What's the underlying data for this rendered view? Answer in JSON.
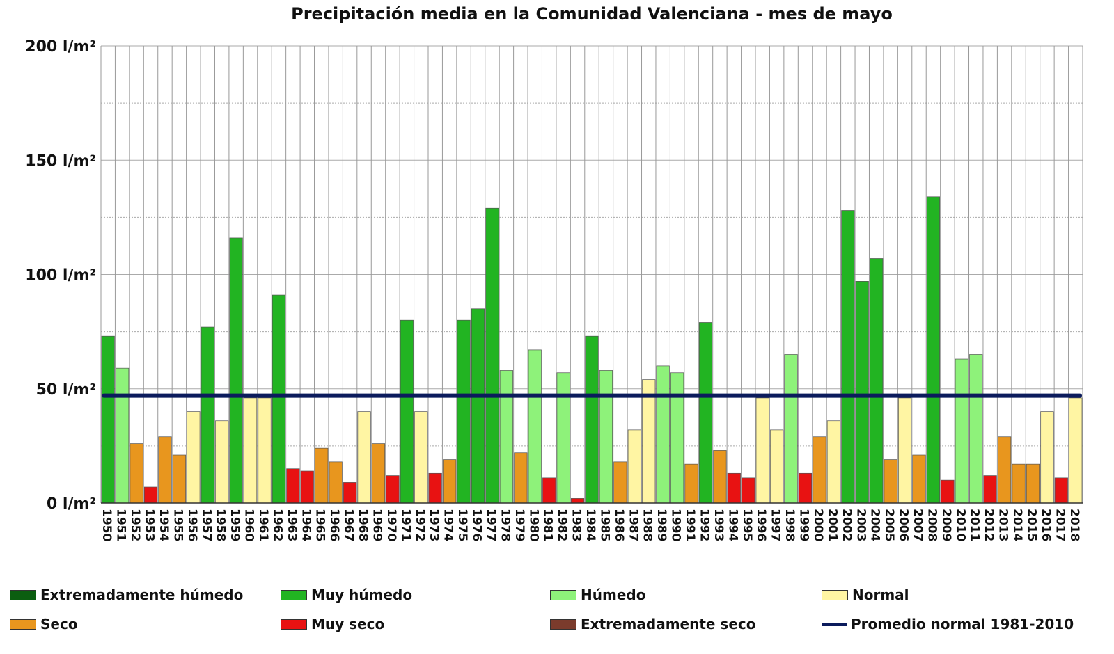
{
  "chart_data": {
    "type": "bar",
    "title": "Precipitación media en la Comunidad Valenciana - mes de mayo",
    "xlabel": "",
    "ylabel": "",
    "ylim": [
      0,
      200
    ],
    "yticks": [
      "0 l/m²",
      "50 l/m²",
      "100 l/m²",
      "150 l/m²",
      "200 l/m²"
    ],
    "ytick_values": [
      0,
      50,
      100,
      150,
      200
    ],
    "categories": [
      "1950",
      "1951",
      "1952",
      "1953",
      "1954",
      "1955",
      "1956",
      "1957",
      "1958",
      "1959",
      "1960",
      "1961",
      "1962",
      "1963",
      "1964",
      "1965",
      "1966",
      "1967",
      "1968",
      "1969",
      "1970",
      "1971",
      "1972",
      "1973",
      "1974",
      "1975",
      "1976",
      "1977",
      "1978",
      "1979",
      "1980",
      "1981",
      "1982",
      "1983",
      "1984",
      "1985",
      "1986",
      "1987",
      "1988",
      "1989",
      "1990",
      "1991",
      "1992",
      "1993",
      "1994",
      "1995",
      "1996",
      "1997",
      "1998",
      "1999",
      "2000",
      "2001",
      "2002",
      "2003",
      "2004",
      "2005",
      "2006",
      "2007",
      "2008",
      "2009",
      "2010",
      "2011",
      "2012",
      "2013",
      "2014",
      "2015",
      "2016",
      "2017",
      "2018"
    ],
    "values": [
      73,
      59,
      26,
      7,
      29,
      21,
      40,
      77,
      36,
      116,
      46,
      46,
      91,
      15,
      14,
      24,
      18,
      9,
      40,
      26,
      12,
      80,
      40,
      13,
      19,
      80,
      85,
      129,
      58,
      22,
      67,
      11,
      57,
      2,
      73,
      58,
      18,
      32,
      54,
      60,
      57,
      17,
      79,
      23,
      13,
      11,
      46,
      32,
      65,
      13,
      29,
      36,
      128,
      97,
      107,
      19,
      46,
      21,
      134,
      10,
      63,
      65,
      12,
      29,
      17,
      17,
      40,
      11,
      46
    ],
    "classes": [
      "MH",
      "H",
      "S",
      "MS",
      "S",
      "S",
      "N",
      "MH",
      "N",
      "MH",
      "N",
      "N",
      "MH",
      "MS",
      "MS",
      "S",
      "S",
      "MS",
      "N",
      "S",
      "MS",
      "MH",
      "N",
      "MS",
      "S",
      "MH",
      "MH",
      "MH",
      "H",
      "S",
      "H",
      "MS",
      "H",
      "MS",
      "MH",
      "H",
      "S",
      "N",
      "N",
      "H",
      "H",
      "S",
      "MH",
      "S",
      "MS",
      "MS",
      "N",
      "N",
      "H",
      "MS",
      "S",
      "N",
      "MH",
      "MH",
      "MH",
      "S",
      "N",
      "S",
      "MH",
      "MS",
      "H",
      "H",
      "MS",
      "S",
      "S",
      "S",
      "N",
      "MS",
      "N"
    ],
    "reference_line": {
      "name": "Promedio normal 1981-2010",
      "value": 47
    },
    "legend": [
      {
        "key": "EH",
        "label": "Extremadamente húmedo",
        "color": "#0b5e10"
      },
      {
        "key": "MH",
        "label": "Muy húmedo",
        "color": "#22b422"
      },
      {
        "key": "H",
        "label": "Húmedo",
        "color": "#8ef27a"
      },
      {
        "key": "N",
        "label": "Normal",
        "color": "#fff5a3"
      },
      {
        "key": "S",
        "label": "Seco",
        "color": "#e8961e"
      },
      {
        "key": "MS",
        "label": "Muy seco",
        "color": "#e81212"
      },
      {
        "key": "ES",
        "label": "Extremadamente seco",
        "color": "#7b3b2c"
      },
      {
        "key": "L",
        "label": "Promedio normal 1981-2010",
        "color": "#0b1b5c"
      }
    ],
    "legend_placement": "bottom"
  }
}
